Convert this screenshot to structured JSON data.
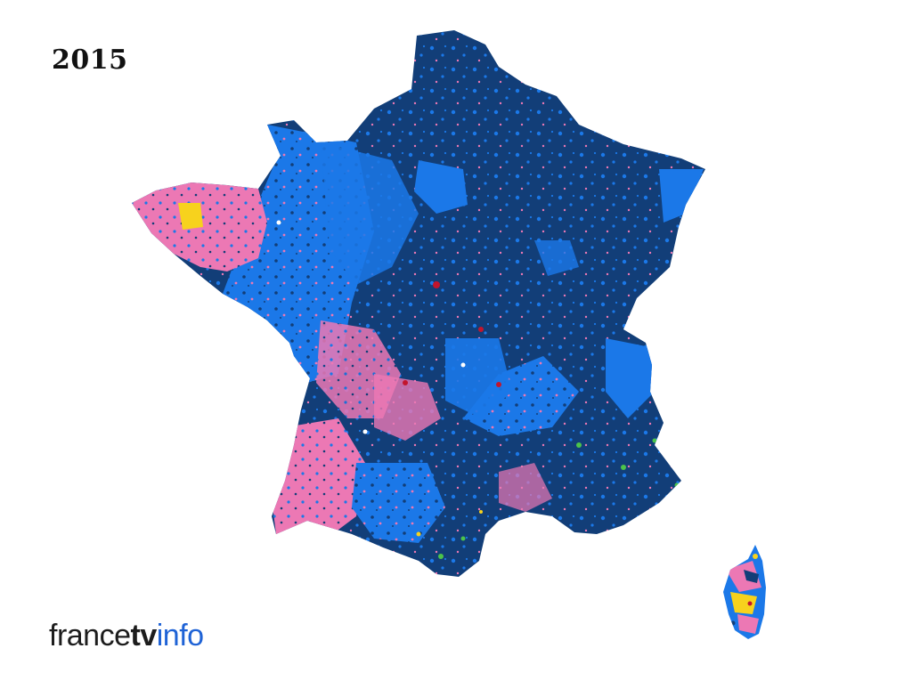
{
  "year": "2015",
  "logo": {
    "part1": "france",
    "part2": "tv",
    "part3": "info"
  },
  "colors": {
    "dark_blue": "#123e78",
    "mid_blue": "#1b78e8",
    "pink": "#ec78b4",
    "yellow": "#f7d21d",
    "green": "#4cc44a",
    "red": "#c2152d",
    "white": "#ffffff"
  }
}
